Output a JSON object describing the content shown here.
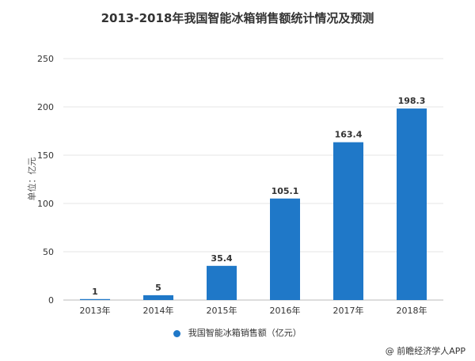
{
  "chart_data": {
    "type": "bar",
    "title": "2013-2018年我国智能冰箱销售额统计情况及预测",
    "ylabel": "单位：亿元",
    "categories": [
      "2013年",
      "2014年",
      "2015年",
      "2016年",
      "2017年",
      "2018年"
    ],
    "series": [
      {
        "name": "我国智能冰箱销售额（亿元）",
        "values": [
          1,
          5,
          35.4,
          105.1,
          163.4,
          198.3
        ]
      }
    ],
    "data_labels": [
      "1",
      "5",
      "35.4",
      "105.1",
      "163.4",
      "198.3"
    ],
    "ylim": [
      0,
      250
    ],
    "yticks": [
      0,
      50,
      100,
      150,
      200,
      250
    ],
    "grid": true,
    "legend_position": "bottom",
    "bar_color": "#1f78c8"
  },
  "credit": "@ 前瞻经济学人APP"
}
